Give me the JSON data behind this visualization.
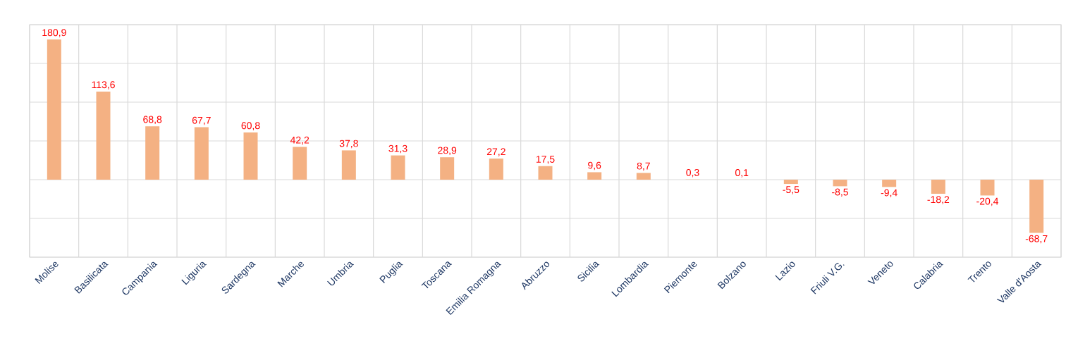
{
  "chart_data": {
    "type": "bar",
    "categories": [
      "Molise",
      "Basilicata",
      "Campania",
      "Liguria",
      "Sardegna",
      "Marche",
      "Umbria",
      "Puglia",
      "Toscana",
      "Emilia Romagna",
      "Abruzzo",
      "Sicilia",
      "Lombardia",
      "Piemonte",
      "Bolzano",
      "Lazio",
      "Friuli V.G.",
      "Veneto",
      "Calabria",
      "Trento",
      "Valle d'Aosta"
    ],
    "values": [
      180.9,
      113.6,
      68.8,
      67.7,
      60.8,
      42.2,
      37.8,
      31.3,
      28.9,
      27.2,
      17.5,
      9.6,
      8.7,
      0.3,
      0.1,
      -5.5,
      -8.5,
      -9.4,
      -18.2,
      -20.4,
      -68.7
    ],
    "value_labels": [
      "180,9",
      "113,6",
      "68,8",
      "67,7",
      "60,8",
      "42,2",
      "37,8",
      "31,3",
      "28,9",
      "27,2",
      "17,5",
      "9,6",
      "8,7",
      "0,3",
      "0,1",
      "-5,5",
      "-8,5",
      "-9,4",
      "-18,2",
      "-20,4",
      "-68,7"
    ],
    "color": "#f4b183",
    "ylim": [
      -100,
      200
    ],
    "yticks": [
      {
        "value": -100,
        "label": null
      },
      {
        "value": -50,
        "label": null
      },
      {
        "value": 0,
        "label": null
      },
      {
        "value": 50,
        "label": null
      },
      {
        "value": 100,
        "label": null
      },
      {
        "value": 150,
        "label": null
      },
      {
        "value": 200,
        "label": null
      }
    ],
    "grid": true
  }
}
